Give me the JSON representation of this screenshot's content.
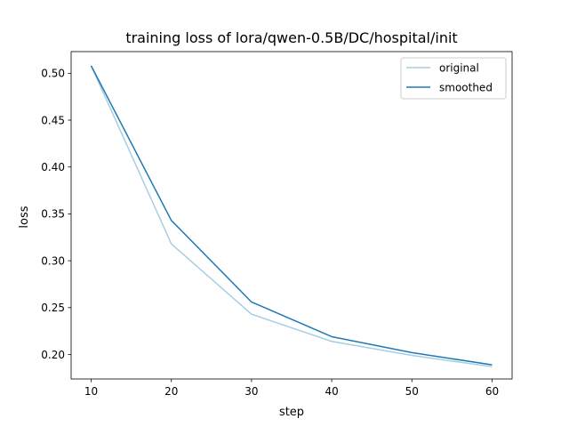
{
  "chart_data": {
    "type": "line",
    "title": "training loss of lora/qwen-0.5B/DC/hospital/init",
    "xlabel": "step",
    "ylabel": "loss",
    "x": [
      10,
      20,
      30,
      40,
      50,
      60
    ],
    "series": [
      {
        "name": "original",
        "color": "#a6cee3",
        "values": [
          0.508,
          0.318,
          0.243,
          0.214,
          0.199,
          0.187
        ]
      },
      {
        "name": "smoothed",
        "color": "#1f78b4",
        "values": [
          0.508,
          0.343,
          0.256,
          0.219,
          0.202,
          0.189
        ]
      }
    ],
    "xlim": [
      7.5,
      62.5
    ],
    "ylim": [
      0.1739,
      0.5231
    ],
    "xticks": [
      10,
      20,
      30,
      40,
      50,
      60
    ],
    "yticks": [
      0.2,
      0.25,
      0.3,
      0.35,
      0.4,
      0.45,
      0.5
    ],
    "ytick_labels": [
      "0.20",
      "0.25",
      "0.30",
      "0.35",
      "0.40",
      "0.45",
      "0.50"
    ],
    "legend_position": "top-right",
    "grid": false
  }
}
